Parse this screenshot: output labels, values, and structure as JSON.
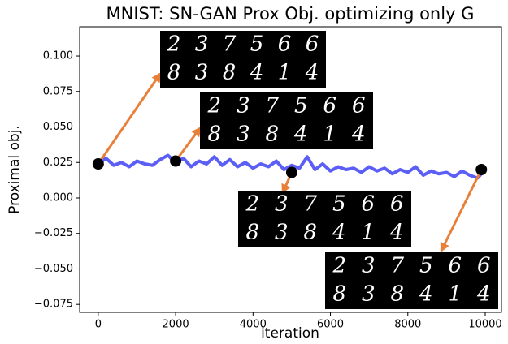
{
  "chart_data": {
    "type": "line",
    "title": "MNIST: SN-GAN Prox Obj. optimizing only G",
    "x_label": "iteration",
    "y_label": "Proximal obj.",
    "xlim": [
      -480,
      10420
    ],
    "ylim": [
      -0.0806,
      0.1206
    ],
    "xticks": [
      0,
      2000,
      4000,
      6000,
      8000,
      10000
    ],
    "yticks": [
      {
        "value": -0.075,
        "label": "−0.075"
      },
      {
        "value": -0.05,
        "label": "−0.050"
      },
      {
        "value": -0.025,
        "label": "−0.025"
      },
      {
        "value": 0,
        "label": "0.000"
      },
      {
        "value": 0.025,
        "label": "0.025"
      },
      {
        "value": 0.05,
        "label": "0.050"
      },
      {
        "value": 0.075,
        "label": "0.075"
      },
      {
        "value": 0.1,
        "label": "0.100"
      }
    ],
    "x": [
      0,
      200,
      400,
      600,
      800,
      1000,
      1200,
      1400,
      1600,
      1800,
      2000,
      2200,
      2400,
      2600,
      2800,
      3000,
      3200,
      3400,
      3600,
      3800,
      4000,
      4200,
      4400,
      4600,
      4800,
      5000,
      5200,
      5400,
      5600,
      5800,
      6000,
      6200,
      6400,
      6600,
      6800,
      7000,
      7200,
      7400,
      7600,
      7800,
      8000,
      8200,
      8400,
      8600,
      8800,
      9000,
      9200,
      9400,
      9600,
      9800,
      10000
    ],
    "series": [
      {
        "color": "#5b5ff5",
        "values": [
          0.024,
          0.028,
          0.023,
          0.025,
          0.022,
          0.026,
          0.024,
          0.023,
          0.027,
          0.03,
          0.025,
          0.028,
          0.022,
          0.026,
          0.024,
          0.029,
          0.023,
          0.027,
          0.022,
          0.025,
          0.021,
          0.024,
          0.022,
          0.026,
          0.02,
          0.023,
          0.021,
          0.029,
          0.02,
          0.024,
          0.019,
          0.022,
          0.02,
          0.021,
          0.018,
          0.022,
          0.019,
          0.021,
          0.017,
          0.02,
          0.018,
          0.022,
          0.016,
          0.019,
          0.017,
          0.018,
          0.015,
          0.019,
          0.016,
          0.014,
          0.02
        ]
      }
    ],
    "samples": [
      {
        "x": 0,
        "y": 0.024,
        "rows": [
          [
            "2",
            "3",
            "7",
            "5",
            "6",
            "6"
          ],
          [
            "8",
            "3",
            "8",
            "4",
            "1",
            "4"
          ]
        ]
      },
      {
        "x": 2000,
        "y": 0.026,
        "rows": [
          [
            "2",
            "3",
            "7",
            "5",
            "6",
            "6"
          ],
          [
            "8",
            "3",
            "8",
            "4",
            "1",
            "4"
          ]
        ]
      },
      {
        "x": 5000,
        "y": 0.018,
        "rows": [
          [
            "2",
            "3",
            "7",
            "5",
            "6",
            "6"
          ],
          [
            "8",
            "3",
            "8",
            "4",
            "1",
            "4"
          ]
        ]
      },
      {
        "x": 9900,
        "y": 0.02,
        "rows": [
          [
            "2",
            "3",
            "7",
            "5",
            "6",
            "6"
          ],
          [
            "8",
            "3",
            "8",
            "4",
            "1",
            "4"
          ]
        ]
      }
    ]
  }
}
